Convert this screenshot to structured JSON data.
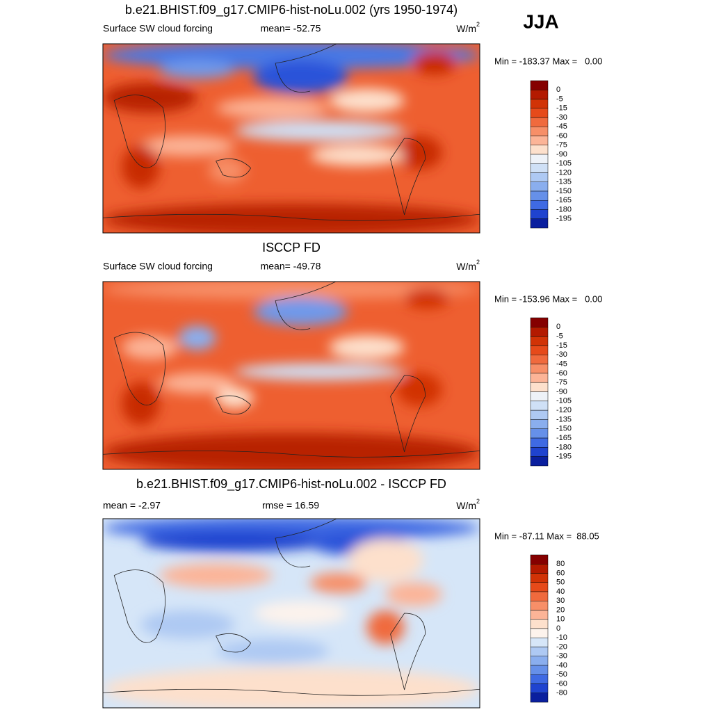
{
  "season": "JJA",
  "panels": [
    {
      "title": "b.e21.BHIST.f09_g17.CMIP6-hist-noLu.002 (yrs 1950-1974)",
      "left": "Surface SW cloud forcing",
      "center": "mean= -52.75",
      "units": "W/m",
      "units_sup": "2",
      "range": "Min = -183.37 Max =   0.00",
      "colorbar": {
        "labels": [
          0,
          -5,
          -15,
          -30,
          -45,
          -60,
          -75,
          -90,
          -105,
          -120,
          -135,
          -150,
          -165,
          -180,
          -195
        ],
        "colors": [
          "#850000",
          "#b31a00",
          "#d13306",
          "#e64a1a",
          "#f06a3d",
          "#f78f68",
          "#fcb497",
          "#fde0cc",
          "#eef2f8",
          "#cfe0f6",
          "#aec9f3",
          "#8aaeee",
          "#6690e9",
          "#3f6ae3",
          "#1f43cf",
          "#0a1f9e",
          "#04107a"
        ]
      }
    },
    {
      "title": "ISCCP FD",
      "left": "Surface SW cloud forcing",
      "center": "mean= -49.78",
      "units": "W/m",
      "units_sup": "2",
      "range": "Min = -153.96 Max =   0.00",
      "colorbar": {
        "labels": [
          0,
          -5,
          -15,
          -30,
          -45,
          -60,
          -75,
          -90,
          -105,
          -120,
          -135,
          -150,
          -165,
          -180,
          -195
        ],
        "colors": [
          "#850000",
          "#b31a00",
          "#d13306",
          "#e64a1a",
          "#f06a3d",
          "#f78f68",
          "#fcb497",
          "#fde0cc",
          "#eef2f8",
          "#cfe0f6",
          "#aec9f3",
          "#8aaeee",
          "#6690e9",
          "#3f6ae3",
          "#1f43cf",
          "#0a1f9e",
          "#04107a"
        ]
      }
    },
    {
      "title": "b.e21.BHIST.f09_g17.CMIP6-hist-noLu.002 - ISCCP FD",
      "left": "mean =  -2.97",
      "center": "rmse =  16.59",
      "units": "W/m",
      "units_sup": "2",
      "range": "Min = -87.11 Max =  88.05",
      "colorbar": {
        "labels": [
          80,
          60,
          50,
          40,
          30,
          20,
          10,
          0,
          -10,
          -20,
          -30,
          -40,
          -50,
          -60,
          -80
        ],
        "colors": [
          "#850000",
          "#b31a00",
          "#d13306",
          "#e64a1a",
          "#f06a3d",
          "#f78f68",
          "#fcb497",
          "#fde0cc",
          "#fdf3ec",
          "#d6e6f8",
          "#aec9f3",
          "#8aaeee",
          "#6690e9",
          "#3f6ae3",
          "#1f43cf",
          "#0a1f9e"
        ]
      }
    }
  ]
}
